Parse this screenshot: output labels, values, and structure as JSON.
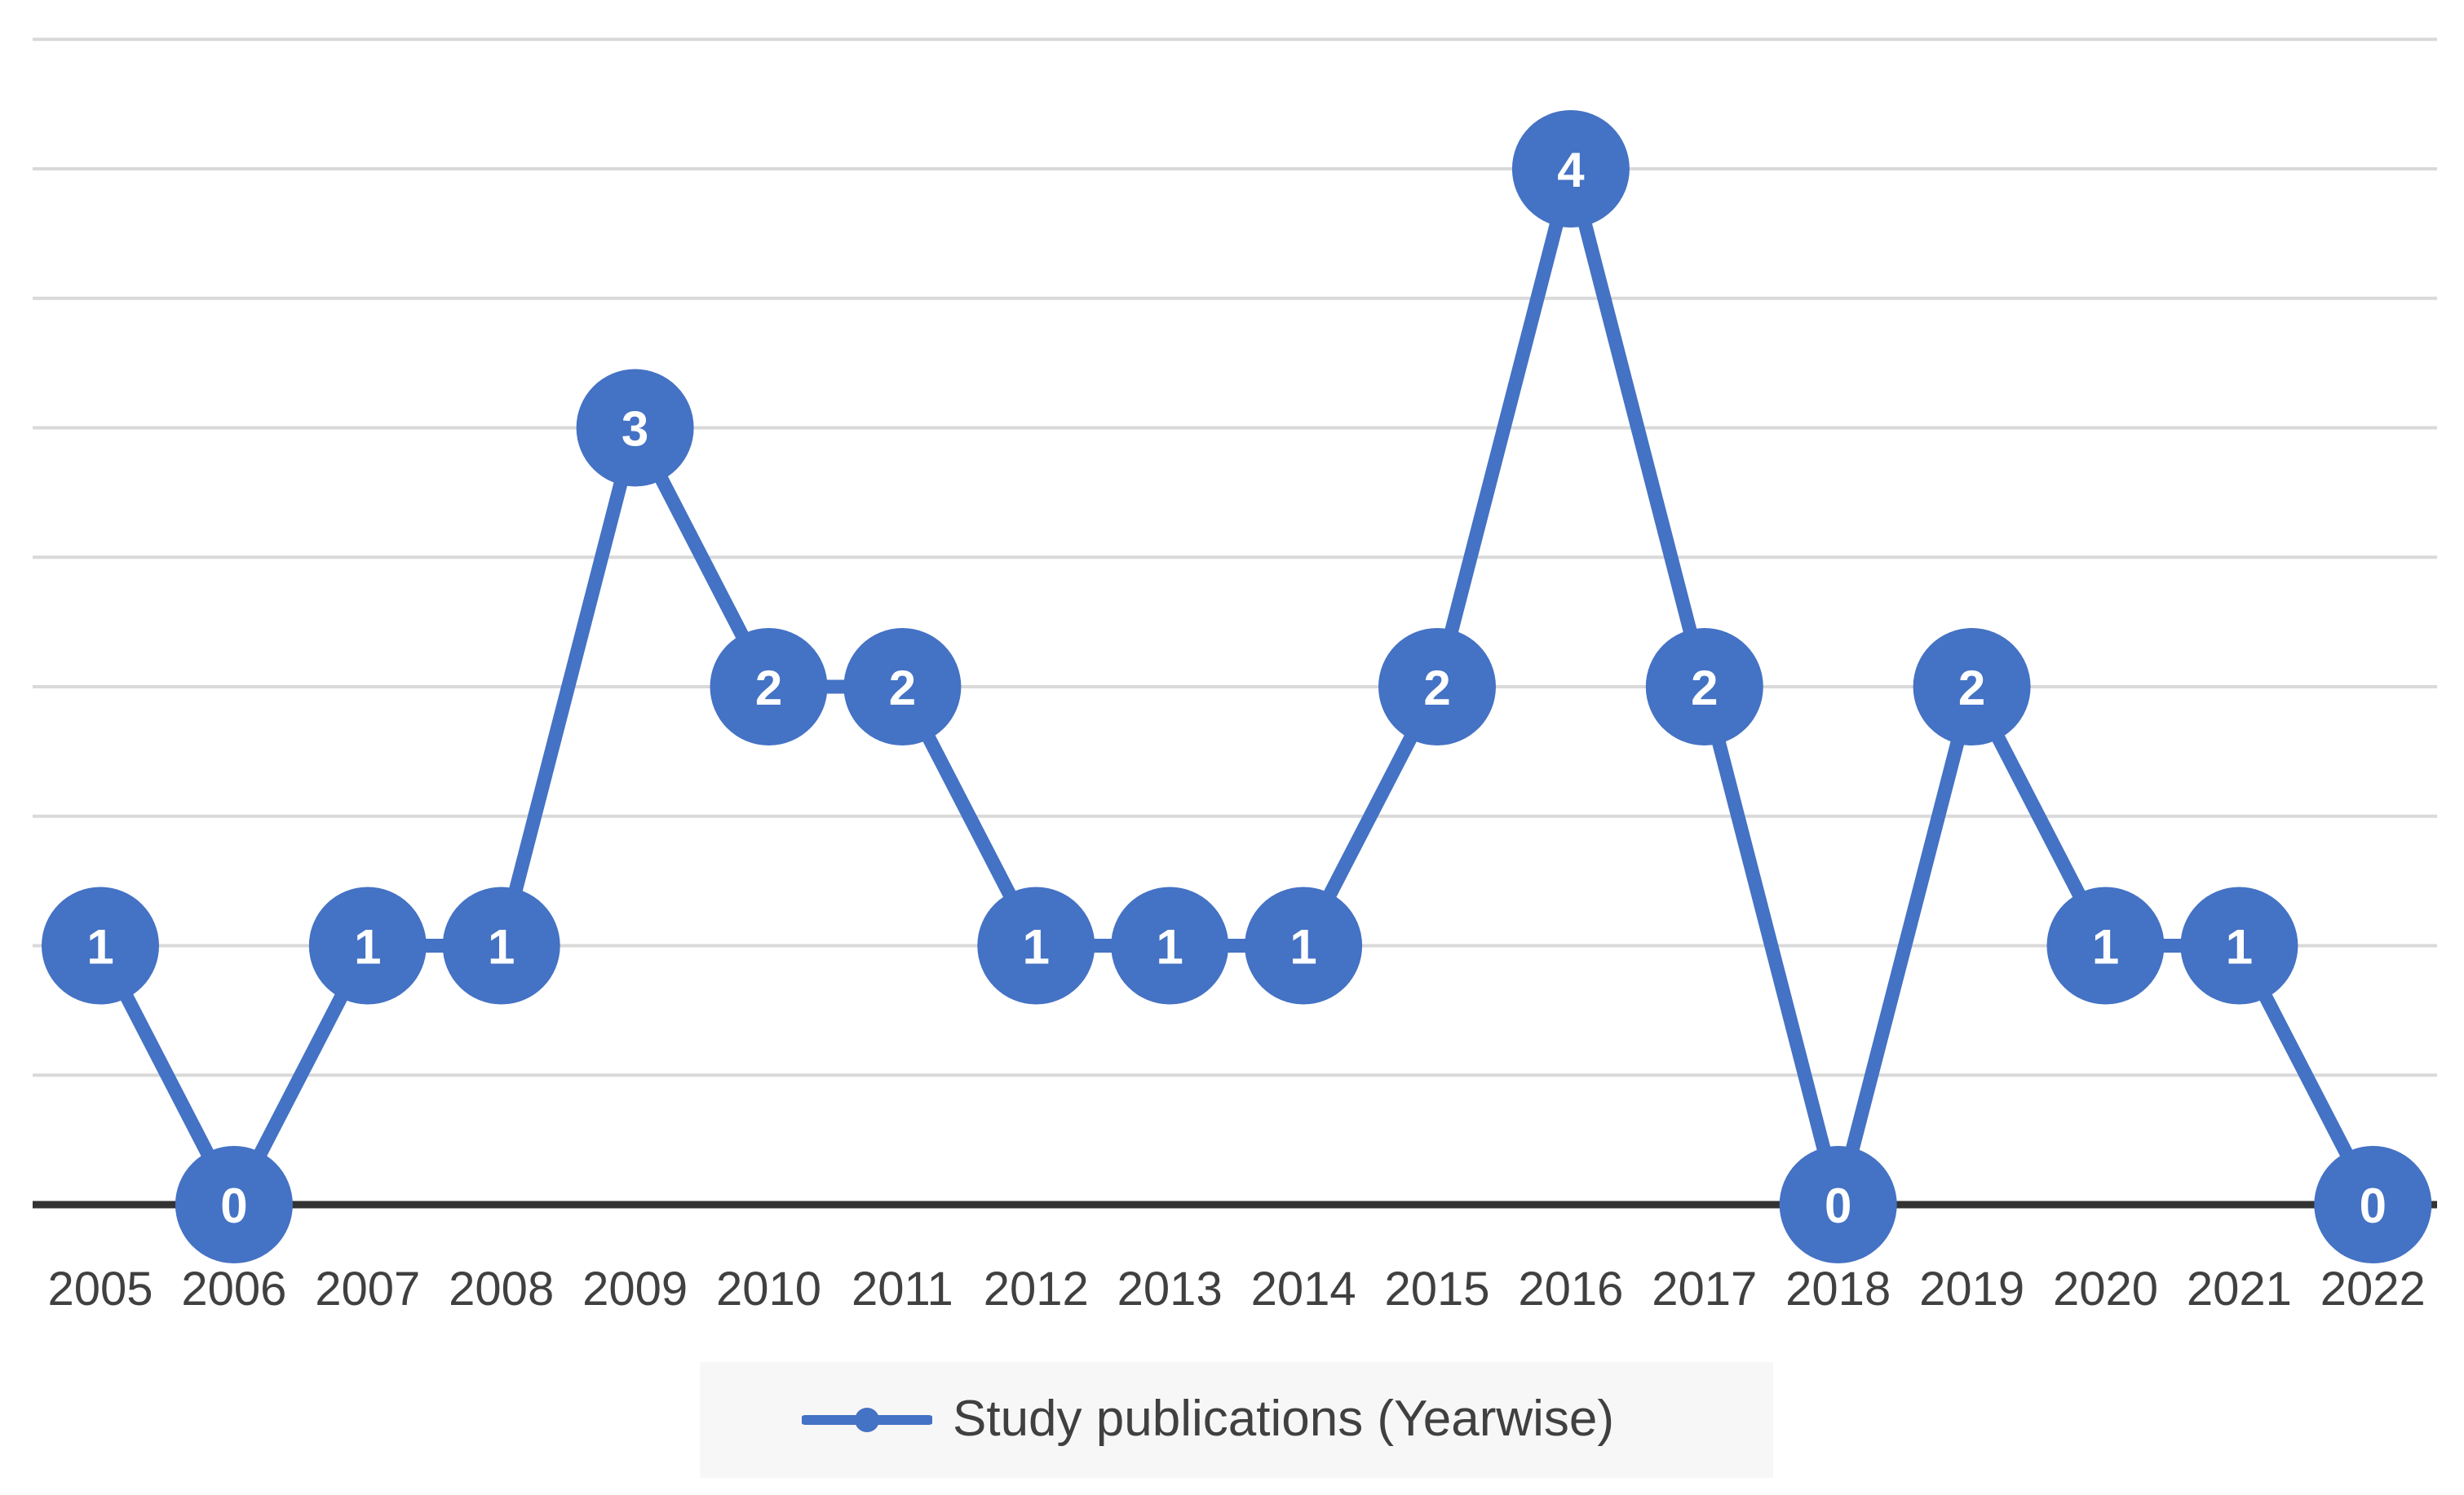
{
  "colors": {
    "series": "#4472c4",
    "gridline": "#d9d9d9",
    "baseline": "#333333",
    "tick_text": "#404040",
    "marker_text": "#ffffff"
  },
  "legend": {
    "label": "Study publications (Yearwise)",
    "placement": "bottom"
  },
  "chart_data": {
    "type": "line",
    "categories": [
      "2005",
      "2006",
      "2007",
      "2008",
      "2009",
      "2010",
      "2011",
      "2012",
      "2013",
      "2014",
      "2015",
      "2016",
      "2017",
      "2018",
      "2019",
      "2020",
      "2021",
      "2022"
    ],
    "series": [
      {
        "name": "Study publications (Yearwise)",
        "values": [
          1,
          0,
          1,
          1,
          3,
          2,
          2,
          1,
          1,
          1,
          2,
          4,
          2,
          0,
          2,
          1,
          1,
          0
        ]
      }
    ],
    "title": "",
    "xlabel": "",
    "ylabel": "",
    "ylim": [
      0,
      4.5
    ],
    "gridline_step": 0.5,
    "grid": true,
    "data_labels": true,
    "marker": "circle"
  }
}
